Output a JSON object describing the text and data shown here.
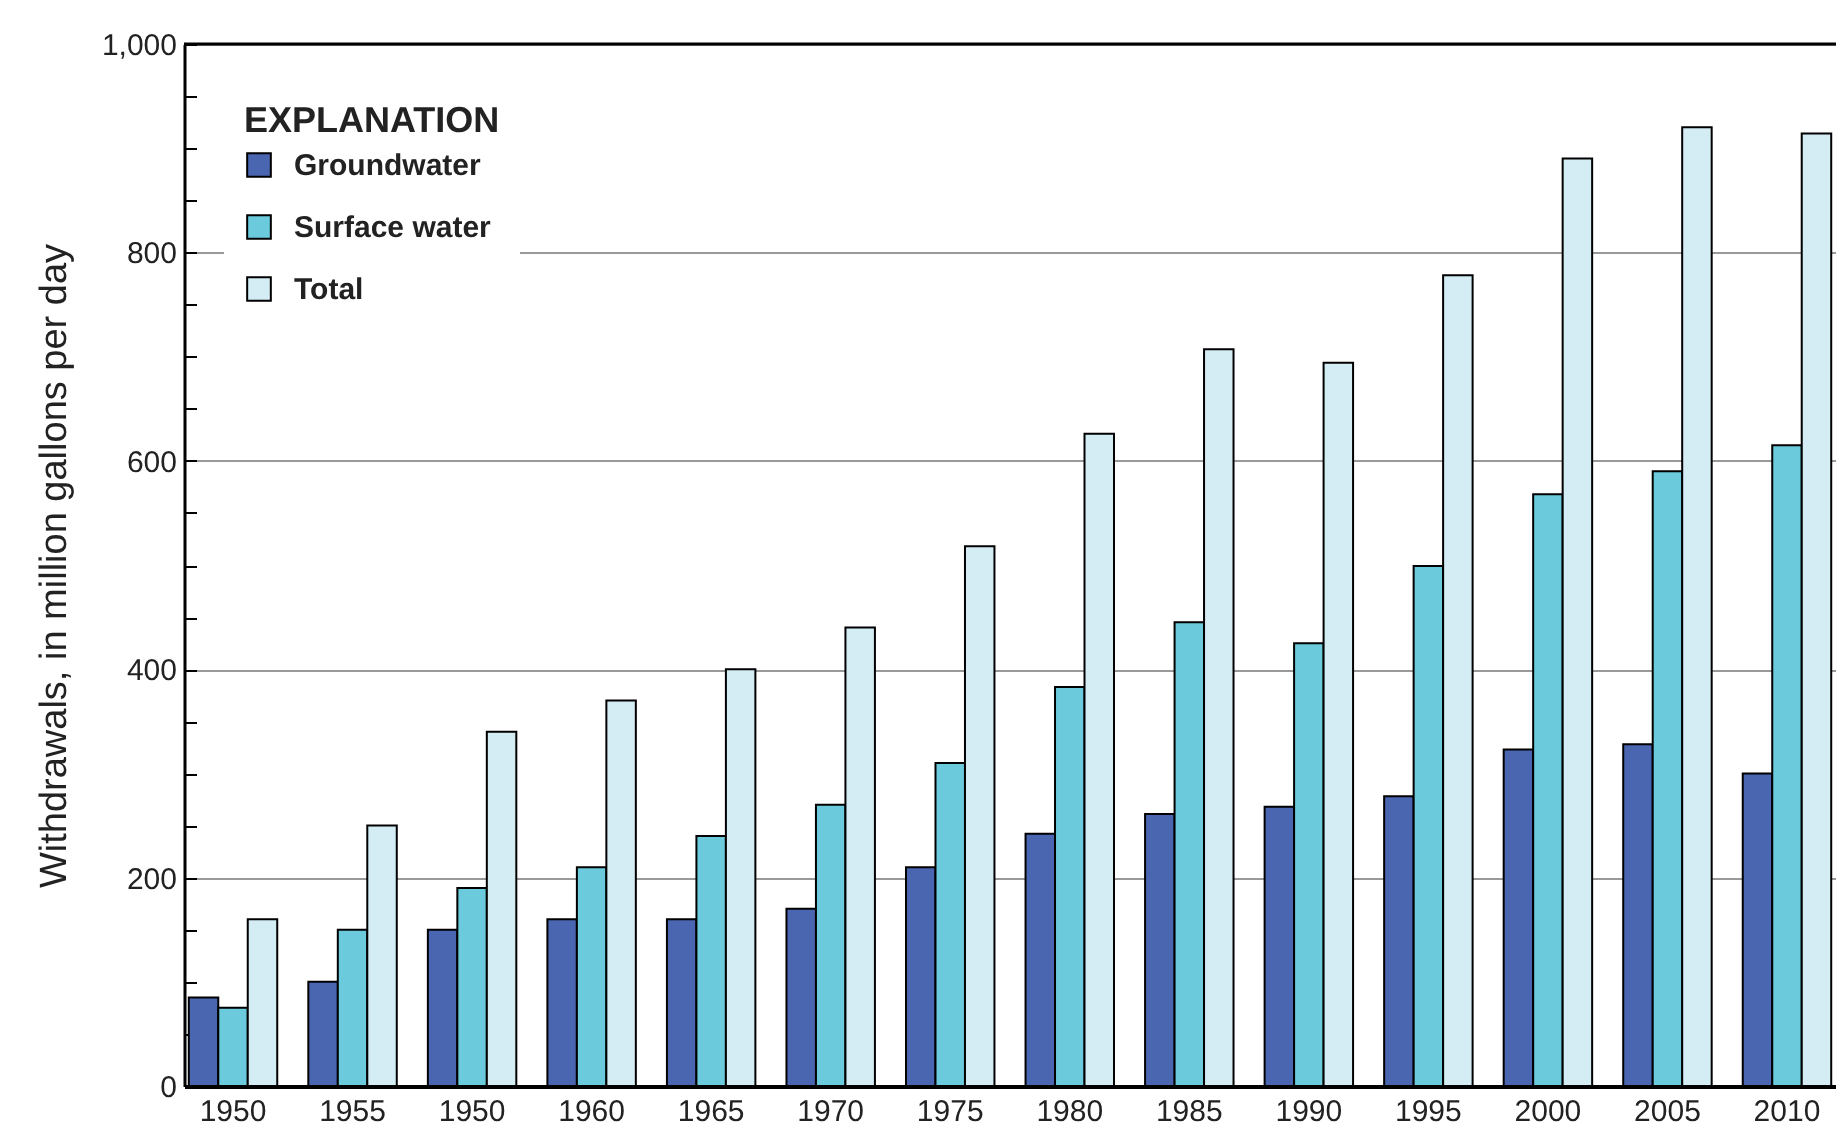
{
  "chart_data": {
    "type": "bar",
    "ylabel": "Withdrawals, in million gallons per day",
    "legend_title": "EXPLANATION",
    "categories": [
      "1950",
      "1955",
      "1950",
      "1960",
      "1965",
      "1970",
      "1975",
      "1980",
      "1985",
      "1990",
      "1995",
      "2000",
      "2005",
      "2010"
    ],
    "series": [
      {
        "name": "Groundwater",
        "color": "#4a66b0",
        "values": [
          85,
          100,
          150,
          160,
          160,
          170,
          210,
          242,
          261,
          268,
          278,
          323,
          328,
          300
        ]
      },
      {
        "name": "Surface water",
        "color": "#6bcbdc",
        "values": [
          75,
          150,
          190,
          210,
          240,
          270,
          310,
          383,
          445,
          425,
          499,
          568,
          590,
          615
        ]
      },
      {
        "name": "Total",
        "color": "#d4edf4",
        "values": [
          160,
          250,
          340,
          370,
          400,
          440,
          518,
          626,
          707,
          694,
          778,
          890,
          920,
          914
        ]
      }
    ],
    "ylim": [
      0,
      1000
    ],
    "yticks": [
      0,
      {
        "value": 50,
        "label": null
      },
      {
        "value": 100,
        "label": null
      },
      {
        "value": 150,
        "label": null
      },
      200,
      {
        "value": 250,
        "label": null
      },
      {
        "value": 300,
        "label": null
      },
      {
        "value": 350,
        "label": null
      },
      400,
      {
        "value": 450,
        "label": null
      },
      {
        "value": 500,
        "label": null
      },
      {
        "value": 550,
        "label": null
      },
      600,
      {
        "value": 650,
        "label": null
      },
      {
        "value": 700,
        "label": null
      },
      {
        "value": 750,
        "label": null
      },
      800,
      {
        "value": 850,
        "label": null
      },
      {
        "value": 900,
        "label": null
      },
      {
        "value": 950,
        "label": null
      },
      {
        "value": 1000,
        "label": "1,000"
      }
    ],
    "grid": "y",
    "legend": "top left"
  }
}
